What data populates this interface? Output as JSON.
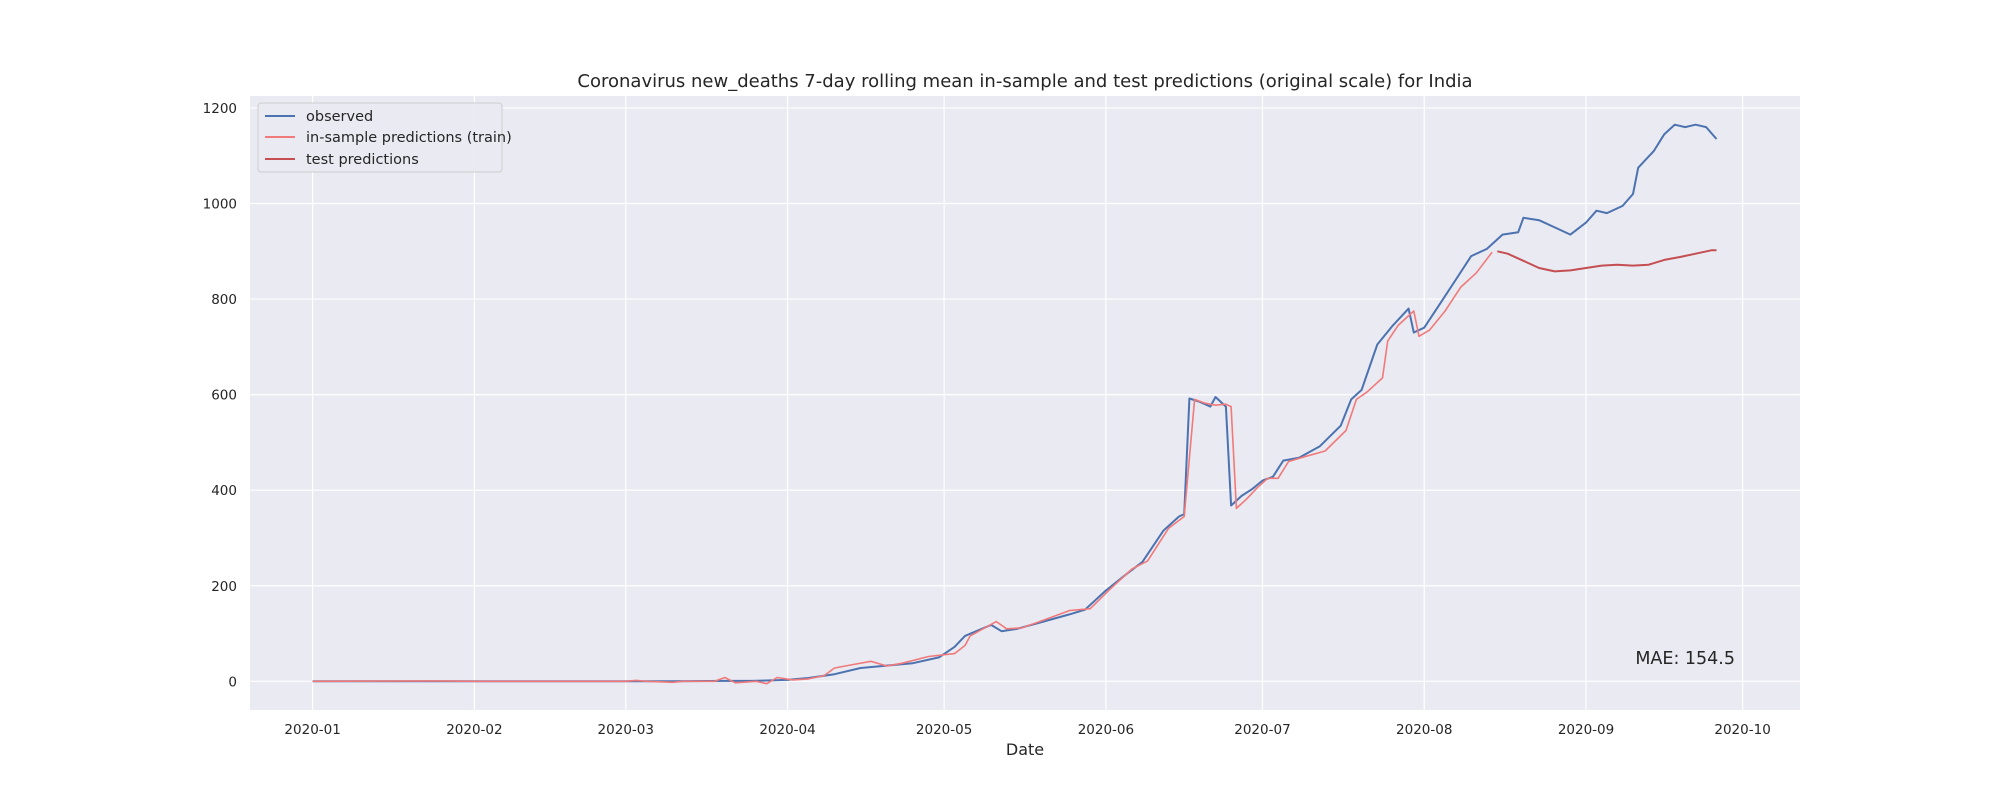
{
  "chart_data": {
    "type": "line",
    "title": "Coronavirus new_deaths 7-day rolling mean in-sample and test predictions (original scale) for India",
    "xlabel": "Date",
    "ylabel": "",
    "x_axis": {
      "type": "date",
      "range": [
        "2019-12-20",
        "2020-10-12"
      ],
      "ticks": [
        "2020-01-01",
        "2020-02-01",
        "2020-03-01",
        "2020-04-01",
        "2020-05-01",
        "2020-06-01",
        "2020-07-01",
        "2020-08-01",
        "2020-09-01",
        "2020-10-01"
      ],
      "tick_labels": [
        "2020-01",
        "2020-02",
        "2020-03",
        "2020-04",
        "2020-05",
        "2020-06",
        "2020-07",
        "2020-08",
        "2020-09",
        "2020-10"
      ]
    },
    "y_axis": {
      "range": [
        -60,
        1225
      ],
      "ticks": [
        0,
        200,
        400,
        600,
        800,
        1000,
        1200
      ],
      "tick_labels": [
        "0",
        "200",
        "400",
        "600",
        "800",
        "1000",
        "1200"
      ]
    },
    "grid": true,
    "legend_position": "top-left",
    "annotation": "MAE: 154.5",
    "series": [
      {
        "name": "observed",
        "color": "#4c72b0",
        "points": [
          [
            "2020-01-01",
            0
          ],
          [
            "2020-01-25",
            0
          ],
          [
            "2020-02-01",
            0
          ],
          [
            "2020-03-01",
            0
          ],
          [
            "2020-03-10",
            0
          ],
          [
            "2020-03-20",
            1
          ],
          [
            "2020-03-25",
            1
          ],
          [
            "2020-04-01",
            3
          ],
          [
            "2020-04-05",
            7
          ],
          [
            "2020-04-10",
            15
          ],
          [
            "2020-04-15",
            28
          ],
          [
            "2020-04-20",
            33
          ],
          [
            "2020-04-25",
            38
          ],
          [
            "2020-04-30",
            50
          ],
          [
            "2020-05-03",
            72
          ],
          [
            "2020-05-05",
            95
          ],
          [
            "2020-05-10",
            118
          ],
          [
            "2020-05-12",
            105
          ],
          [
            "2020-05-15",
            110
          ],
          [
            "2020-05-20",
            125
          ],
          [
            "2020-05-25",
            140
          ],
          [
            "2020-05-28",
            150
          ],
          [
            "2020-06-01",
            190
          ],
          [
            "2020-06-05",
            225
          ],
          [
            "2020-06-08",
            250
          ],
          [
            "2020-06-12",
            315
          ],
          [
            "2020-06-15",
            345
          ],
          [
            "2020-06-16",
            350
          ],
          [
            "2020-06-17",
            592
          ],
          [
            "2020-06-19",
            585
          ],
          [
            "2020-06-21",
            575
          ],
          [
            "2020-06-22",
            595
          ],
          [
            "2020-06-24",
            575
          ],
          [
            "2020-06-25",
            368
          ],
          [
            "2020-06-27",
            388
          ],
          [
            "2020-06-29",
            402
          ],
          [
            "2020-07-01",
            420
          ],
          [
            "2020-07-03",
            428
          ],
          [
            "2020-07-05",
            462
          ],
          [
            "2020-07-08",
            468
          ],
          [
            "2020-07-12",
            492
          ],
          [
            "2020-07-16",
            535
          ],
          [
            "2020-07-18",
            590
          ],
          [
            "2020-07-20",
            610
          ],
          [
            "2020-07-23",
            705
          ],
          [
            "2020-07-26",
            745
          ],
          [
            "2020-07-29",
            780
          ],
          [
            "2020-07-30",
            730
          ],
          [
            "2020-08-01",
            740
          ],
          [
            "2020-08-04",
            790
          ],
          [
            "2020-08-07",
            840
          ],
          [
            "2020-08-10",
            890
          ],
          [
            "2020-08-13",
            905
          ],
          [
            "2020-08-16",
            935
          ],
          [
            "2020-08-19",
            940
          ],
          [
            "2020-08-20",
            970
          ],
          [
            "2020-08-23",
            965
          ],
          [
            "2020-08-26",
            950
          ],
          [
            "2020-08-29",
            935
          ],
          [
            "2020-09-01",
            960
          ],
          [
            "2020-09-03",
            985
          ],
          [
            "2020-09-05",
            980
          ],
          [
            "2020-09-08",
            995
          ],
          [
            "2020-09-10",
            1020
          ],
          [
            "2020-09-11",
            1075
          ],
          [
            "2020-09-14",
            1110
          ],
          [
            "2020-09-16",
            1145
          ],
          [
            "2020-09-18",
            1165
          ],
          [
            "2020-09-20",
            1160
          ],
          [
            "2020-09-22",
            1165
          ],
          [
            "2020-09-24",
            1160
          ],
          [
            "2020-09-26",
            1135
          ]
        ]
      },
      {
        "name": "in-sample predictions (train)",
        "color": "#f07a7a",
        "points": [
          [
            "2020-01-01",
            0
          ],
          [
            "2020-01-25",
            1
          ],
          [
            "2020-02-01",
            0
          ],
          [
            "2020-03-01",
            0
          ],
          [
            "2020-03-03",
            2
          ],
          [
            "2020-03-05",
            0
          ],
          [
            "2020-03-10",
            -2
          ],
          [
            "2020-03-12",
            0
          ],
          [
            "2020-03-18",
            0
          ],
          [
            "2020-03-20",
            8
          ],
          [
            "2020-03-22",
            -3
          ],
          [
            "2020-03-26",
            0
          ],
          [
            "2020-03-28",
            -5
          ],
          [
            "2020-03-30",
            8
          ],
          [
            "2020-04-02",
            3
          ],
          [
            "2020-04-05",
            5
          ],
          [
            "2020-04-08",
            12
          ],
          [
            "2020-04-10",
            28
          ],
          [
            "2020-04-14",
            36
          ],
          [
            "2020-04-17",
            42
          ],
          [
            "2020-04-20",
            32
          ],
          [
            "2020-04-23",
            38
          ],
          [
            "2020-04-28",
            52
          ],
          [
            "2020-05-03",
            58
          ],
          [
            "2020-05-05",
            75
          ],
          [
            "2020-05-06",
            95
          ],
          [
            "2020-05-11",
            125
          ],
          [
            "2020-05-13",
            110
          ],
          [
            "2020-05-16",
            112
          ],
          [
            "2020-05-20",
            128
          ],
          [
            "2020-05-25",
            148
          ],
          [
            "2020-05-29",
            152
          ],
          [
            "2020-06-02",
            195
          ],
          [
            "2020-06-06",
            235
          ],
          [
            "2020-06-09",
            252
          ],
          [
            "2020-06-13",
            320
          ],
          [
            "2020-06-16",
            345
          ],
          [
            "2020-06-18",
            590
          ],
          [
            "2020-06-20",
            582
          ],
          [
            "2020-06-22",
            578
          ],
          [
            "2020-06-24",
            580
          ],
          [
            "2020-06-25",
            575
          ],
          [
            "2020-06-26",
            362
          ],
          [
            "2020-06-28",
            382
          ],
          [
            "2020-06-30",
            405
          ],
          [
            "2020-07-02",
            425
          ],
          [
            "2020-07-04",
            425
          ],
          [
            "2020-07-06",
            460
          ],
          [
            "2020-07-09",
            470
          ],
          [
            "2020-07-13",
            482
          ],
          [
            "2020-07-17",
            525
          ],
          [
            "2020-07-19",
            590
          ],
          [
            "2020-07-21",
            605
          ],
          [
            "2020-07-24",
            635
          ],
          [
            "2020-07-25",
            712
          ],
          [
            "2020-07-27",
            745
          ],
          [
            "2020-07-30",
            775
          ],
          [
            "2020-07-31",
            722
          ],
          [
            "2020-08-02",
            735
          ],
          [
            "2020-08-05",
            775
          ],
          [
            "2020-08-08",
            825
          ],
          [
            "2020-08-11",
            855
          ],
          [
            "2020-08-14",
            898
          ]
        ]
      },
      {
        "name": "test predictions",
        "color": "#c44e52",
        "points": [
          [
            "2020-08-15",
            900
          ],
          [
            "2020-08-17",
            895
          ],
          [
            "2020-08-20",
            880
          ],
          [
            "2020-08-23",
            865
          ],
          [
            "2020-08-26",
            858
          ],
          [
            "2020-08-29",
            860
          ],
          [
            "2020-09-01",
            865
          ],
          [
            "2020-09-04",
            870
          ],
          [
            "2020-09-07",
            872
          ],
          [
            "2020-09-10",
            870
          ],
          [
            "2020-09-13",
            872
          ],
          [
            "2020-09-16",
            882
          ],
          [
            "2020-09-19",
            888
          ],
          [
            "2020-09-22",
            895
          ],
          [
            "2020-09-25",
            902
          ],
          [
            "2020-09-26",
            902
          ]
        ]
      }
    ]
  }
}
